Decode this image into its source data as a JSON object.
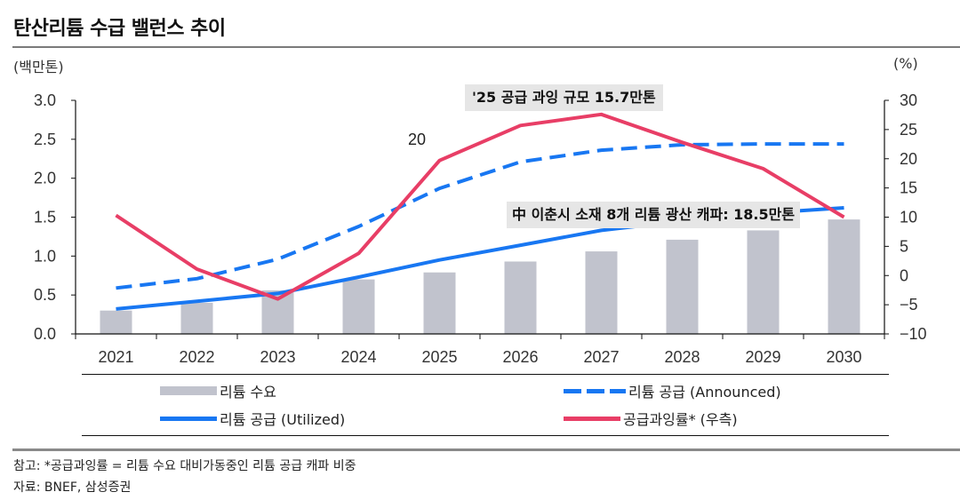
{
  "header": {
    "title": "탄산리튬 수급 밸런스 추이",
    "unit_left": "(백만톤)",
    "unit_right": "(%)"
  },
  "chart_data": {
    "type": "bar",
    "title": "탄산리튬 수급 밸런스 추이",
    "xlabel": "",
    "ylabel": "백만톤",
    "y2label": "%",
    "categories": [
      "2021",
      "2022",
      "2023",
      "2024",
      "2025",
      "2026",
      "2027",
      "2028",
      "2029",
      "2030"
    ],
    "ylim": [
      0,
      3.0
    ],
    "yticks": [
      "0.0",
      "0.5",
      "1.0",
      "1.5",
      "2.0",
      "2.5",
      "3.0"
    ],
    "y2lim": [
      -10,
      30
    ],
    "y2ticks": [
      "-10",
      "-5",
      "0",
      "5",
      "10",
      "15",
      "20",
      "25",
      "30"
    ],
    "grid": false,
    "legend_position": "bottom",
    "series": [
      {
        "name": "리튬 수요",
        "type": "bar",
        "axis": "left",
        "color": "#c1c3cd",
        "values": [
          0.3,
          0.4,
          0.56,
          0.7,
          0.79,
          0.93,
          1.06,
          1.21,
          1.33,
          1.47
        ]
      },
      {
        "name": "리튬 공급 (Announced)",
        "type": "line",
        "style": "dashed",
        "axis": "left",
        "color": "#1877f2",
        "values": [
          0.59,
          0.71,
          0.96,
          1.38,
          1.87,
          2.21,
          2.36,
          2.43,
          2.44,
          2.44
        ]
      },
      {
        "name": "리튬 공급 (Utilized)",
        "type": "line",
        "style": "solid",
        "axis": "left",
        "color": "#1877f2",
        "values": [
          0.32,
          0.42,
          0.52,
          0.73,
          0.95,
          1.14,
          1.33,
          1.45,
          1.55,
          1.62
        ]
      },
      {
        "name": "공급과잉률* (우측)",
        "type": "line",
        "style": "solid",
        "axis": "right",
        "color": "#e83e66",
        "values": [
          10.3,
          1.1,
          -4.0,
          3.8,
          19.7,
          25.7,
          27.6,
          22.8,
          18.3,
          10.0
        ]
      }
    ],
    "annotations": [
      {
        "text": "'25 공급 과잉 규모 15.7만톤"
      },
      {
        "text": "中 이춘시 소재 8개 리튬 광산 캐파: 18.5만톤"
      },
      {
        "text": "20"
      }
    ]
  },
  "legend": [
    {
      "label": "리튬 수요",
      "swatch": "bar"
    },
    {
      "label": "리튬 공급 (Announced)",
      "swatch": "dash"
    },
    {
      "label": "리튬 공급 (Utilized)",
      "swatch": "solid"
    },
    {
      "label": "공급과잉률* (우측)",
      "swatch": "red"
    }
  ],
  "footer": {
    "note": "참고: *공급과잉률 = 리튬 수요 대비가동중인 리튬 공급 캐파 비중",
    "source": "자료: BNEF, 삼성증권"
  }
}
